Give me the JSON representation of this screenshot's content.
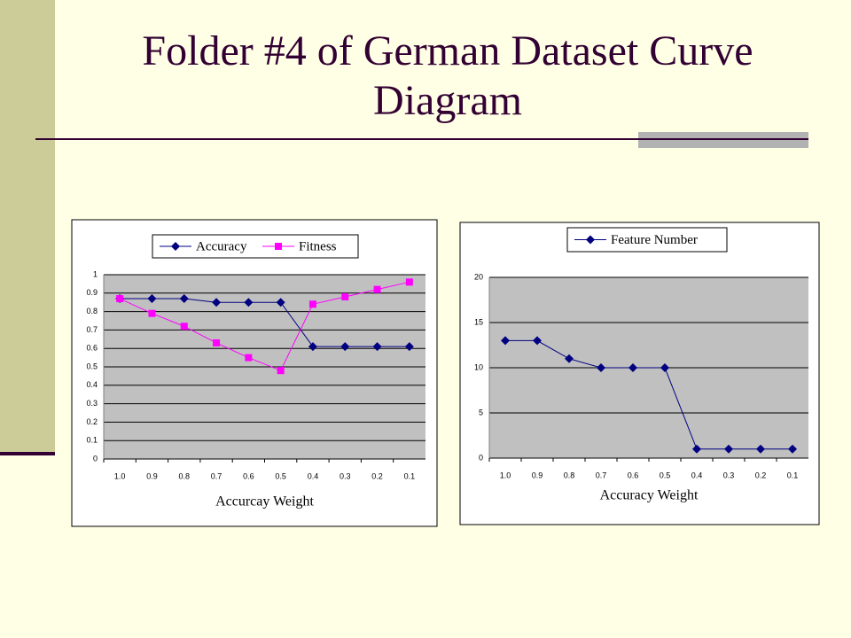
{
  "slide": {
    "title": "Folder #4 of German Dataset Curve Diagram"
  },
  "chart_data": [
    {
      "type": "line",
      "x_label": "Accurcay Weight",
      "categories": [
        "1.0",
        "0.9",
        "0.8",
        "0.7",
        "0.6",
        "0.5",
        "0.4",
        "0.3",
        "0.2",
        "0.1"
      ],
      "series": [
        {
          "name": "Accuracy",
          "color": "#000080",
          "marker": "diamond",
          "values": [
            0.87,
            0.87,
            0.87,
            0.85,
            0.85,
            0.85,
            0.61,
            0.61,
            0.61,
            0.61
          ]
        },
        {
          "name": "Fitness",
          "color": "#ff00ff",
          "marker": "square",
          "values": [
            0.87,
            0.79,
            0.72,
            0.63,
            0.55,
            0.48,
            0.84,
            0.88,
            0.92,
            0.96
          ]
        }
      ],
      "ylim": [
        0,
        1
      ],
      "yticks": [
        0,
        0.1,
        0.2,
        0.3,
        0.4,
        0.5,
        0.6,
        0.7,
        0.8,
        0.9,
        1
      ],
      "grid": true,
      "legend": "top"
    },
    {
      "type": "line",
      "x_label": "Accuracy Weight",
      "categories": [
        "1.0",
        "0.9",
        "0.8",
        "0.7",
        "0.6",
        "0.5",
        "0.4",
        "0.3",
        "0.2",
        "0.1"
      ],
      "series": [
        {
          "name": "Feature Number",
          "color": "#000080",
          "marker": "diamond",
          "values": [
            13,
            13,
            11,
            10,
            10,
            10,
            1,
            1,
            1,
            1
          ]
        }
      ],
      "ylim": [
        0,
        20
      ],
      "yticks": [
        0,
        5,
        10,
        15,
        20
      ],
      "grid": true,
      "legend": "top"
    }
  ]
}
